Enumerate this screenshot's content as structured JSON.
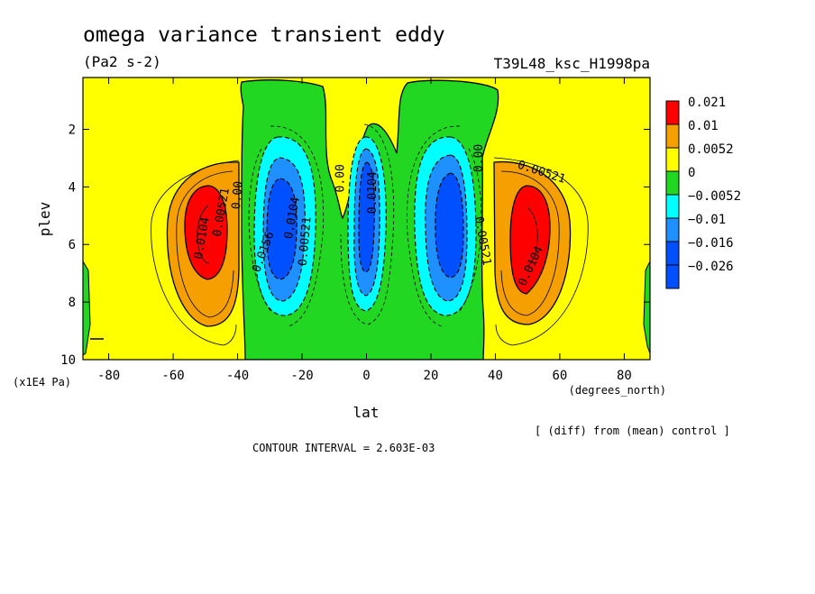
{
  "chart_data": {
    "type": "contour",
    "title": "omega variance transient eddy",
    "units": "(Pa2 s-2)",
    "run_label": "T39L48_ksc_H1998pa",
    "xlabel": "lat",
    "ylabel": "plev",
    "x_unit": "(degrees_north)",
    "y_unit": "(x1E4 Pa)",
    "xlim": [
      -88,
      88
    ],
    "ylim": [
      10,
      0.2
    ],
    "x_ticks": [
      "-80",
      "-60",
      "-40",
      "-20",
      "0",
      "20",
      "40",
      "60",
      "80"
    ],
    "y_ticks": [
      "2",
      "4",
      "6",
      "8",
      "10"
    ],
    "legend": {
      "placement": "right",
      "levels": [
        "0.021",
        "0.01",
        "0.0052",
        "0",
        "−0.0052",
        "−0.01",
        "−0.016",
        "−0.026"
      ],
      "colors": [
        "#ff0000",
        "#f5a000",
        "#ffff00",
        "#22d722",
        "#00ffff",
        "#1e90ff",
        "#0050ff",
        "#0050ff"
      ]
    },
    "contour_labels": [
      {
        "text": "0.0104",
        "lat": -50,
        "p": 5.8,
        "rot": -80
      },
      {
        "text": "0.00521",
        "lat": -44,
        "p": 4.9,
        "rot": -80
      },
      {
        "text": "0.00",
        "lat": -39,
        "p": 4.3,
        "rot": -85
      },
      {
        "text": "0.0156",
        "lat": -31,
        "p": 6.3,
        "rot": -70
      },
      {
        "text": "0.0104",
        "lat": -22,
        "p": 5.1,
        "rot": -80
      },
      {
        "text": "0.00521",
        "lat": -18,
        "p": 5.9,
        "rot": -85
      },
      {
        "text": "0.00",
        "lat": -7,
        "p": 3.7,
        "rot": -90
      },
      {
        "text": "0.0104",
        "lat": 3,
        "p": 4.2,
        "rot": -90
      },
      {
        "text": "0.00",
        "lat": 36,
        "p": 3.0,
        "rot": -90
      },
      {
        "text": "0.00521",
        "lat": 35,
        "p": 5.9,
        "rot": 80
      },
      {
        "text": "0.00521",
        "lat": 54,
        "p": 3.6,
        "rot": 18
      },
      {
        "text": "0.0104",
        "lat": 52,
        "p": 6.8,
        "rot": -65
      }
    ],
    "interval_text": "CONTOUR INTERVAL = 2.603E-03",
    "note": "[ (diff) from (mean) control ]"
  }
}
